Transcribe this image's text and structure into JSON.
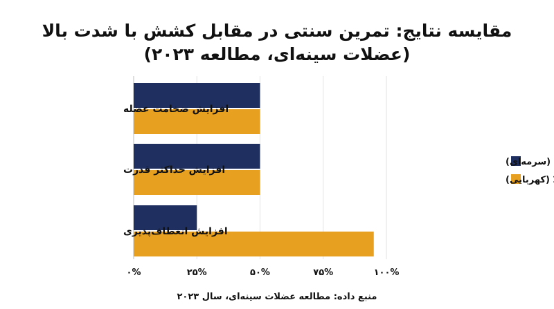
{
  "chart_data": {
    "type": "bar",
    "orientation": "horizontal",
    "title_line1": "مقایسه نتایج: تمرین سنتی در مقابل کشش با شدت بالا",
    "title_line2": "(عضلات سینه‌ای، مطالعه ۲۰۲۳)",
    "categories": [
      "افزایش ضخامت عضله",
      "افزایش حداکثر قدرت",
      "افزایش انعطاف‌پذیری"
    ],
    "series": [
      {
        "name": "تمرین سنتی (سرمه‌ای)",
        "color": "#1f3060",
        "values": [
          50,
          50,
          25
        ]
      },
      {
        "name": "کشش با شدت بالا (کهربایی)",
        "color": "#e8a020",
        "values": [
          50,
          50,
          95
        ]
      }
    ],
    "xlim": [
      0,
      100
    ],
    "x_ticks": [
      0,
      25,
      50,
      75,
      100
    ],
    "x_tick_labels": [
      "۰%",
      "۲۵%",
      "۵۰%",
      "۷۵%",
      "۱۰۰%"
    ],
    "xlabel": "",
    "ylabel": "",
    "grid": true,
    "legend_position": "right",
    "source": "منبع داده: مطالعه عضلات سینه‌ای، سال ۲۰۲۳"
  }
}
